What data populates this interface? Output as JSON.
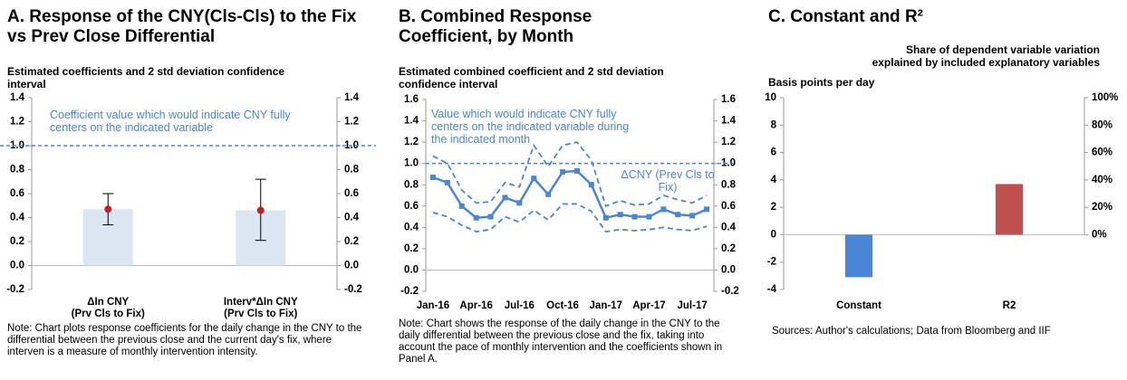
{
  "chart_data": [
    {
      "type": "bar",
      "title": "A. Response of the CNY(Cls-Cls) to the Fix vs Prev Close Differential",
      "subtitle": "Estimated coefficients and 2 std deviation confidence interval",
      "categories": [
        "ΔIn CNY\n(Prv Cls to Fix)",
        "Interv*ΔIn CNY\n(Prv Cls to Fix)"
      ],
      "values": [
        0.47,
        0.46
      ],
      "color": "#dce6f2",
      "point_color": "#c0202a",
      "error_low": [
        0.34,
        0.21
      ],
      "error_high": [
        0.6,
        0.72
      ],
      "reference_line": {
        "value": 1,
        "color": "#4a86d4",
        "label": "Coefficient value which would indicate CNY fully centers on the indicated variable"
      },
      "ylim": [
        -0.2,
        1.4
      ],
      "yticks": [
        -0.2,
        {
          "value": 0,
          "label": "0.0"
        },
        0.2,
        0.4,
        0.6,
        0.8,
        {
          "value": 1,
          "label": "1.0"
        },
        1.2,
        1.4
      ],
      "y2lim": [
        -0.2,
        1.4
      ],
      "y2ticks": [
        -0.2,
        {
          "value": 0,
          "label": "0.0"
        },
        0.2,
        0.4,
        0.6,
        0.8,
        {
          "value": 1,
          "label": "1.0"
        },
        1.2,
        1.4
      ],
      "note": "Note: Chart plots response coefficients for the daily change in the CNY to the differential between the previous close and the current day's fix, where interven is a measure of monthly intervention intensity."
    },
    {
      "type": "line",
      "title": "B. Combined Response Coefficient, by Month",
      "subtitle": "Estimated combined coefficient and 2 std deviation confidence interval",
      "categories": [
        "Jan-16",
        null,
        null,
        "Apr-16",
        null,
        null,
        "Jul-16",
        null,
        null,
        "Oct-16",
        null,
        null,
        "Jan-17",
        null,
        null,
        "Apr-17",
        null,
        null,
        "Jul-17",
        null
      ],
      "series": [
        {
          "color": "#4a86d4",
          "style": "solid",
          "markers": true,
          "values": [
            0.87,
            0.82,
            0.6,
            0.49,
            0.5,
            0.68,
            0.63,
            0.86,
            0.71,
            0.92,
            0.93,
            0.8,
            0.49,
            0.52,
            0.5,
            0.5,
            0.57,
            0.52,
            0.51,
            0.57
          ]
        },
        {
          "color": "#4a86d4",
          "style": "dashed",
          "markers": false,
          "values": [
            1.07,
            1.0,
            0.75,
            0.63,
            0.64,
            0.82,
            0.78,
            1.17,
            0.97,
            1.17,
            1.2,
            1.03,
            0.6,
            0.65,
            0.61,
            0.62,
            0.7,
            0.66,
            0.63,
            0.7
          ]
        },
        {
          "color": "#4a86d4",
          "style": "dashed",
          "markers": false,
          "values": [
            0.54,
            0.5,
            0.42,
            0.36,
            0.38,
            0.5,
            0.45,
            0.56,
            0.47,
            0.62,
            0.62,
            0.55,
            0.36,
            0.38,
            0.37,
            0.38,
            0.4,
            0.38,
            0.37,
            0.41
          ]
        }
      ],
      "reference_line": {
        "value": 1,
        "color": "#4a86d4",
        "label": "Value which would indicate CNY fully centers on the indicated variable during the indicated month"
      },
      "annotation": "ΔCNY (Prev Cls to Fix)",
      "ylim": [
        -0.2,
        1.6
      ],
      "yticks": [
        -0.2,
        {
          "value": 0,
          "label": "0.0"
        },
        0.2,
        0.4,
        0.6,
        0.8,
        {
          "value": 1,
          "label": "1.0"
        },
        1.2,
        1.4,
        1.6
      ],
      "y2lim": [
        -0.2,
        1.6
      ],
      "y2ticks": [
        -0.2,
        {
          "value": 0,
          "label": "0.0"
        },
        0.2,
        0.4,
        0.6,
        0.8,
        {
          "value": 1,
          "label": "1.0"
        },
        1.2,
        1.4,
        1.6
      ],
      "note": "Note: Chart shows the response of the daily change in the CNY to the daily differential between the previous close and the fix, taking into account the pace of monthly intervention and the coefficients shown in Panel A."
    },
    {
      "type": "bar",
      "title": "C. Constant and R²",
      "ylabel": "Basis points per day",
      "y2label": "Share of dependent variable variation explained by included explanatory variables",
      "categories": [
        "Constant",
        "R2"
      ],
      "series": [
        {
          "color": "#4a86d4",
          "values": [
            -3.1,
            null
          ]
        },
        {
          "color": "#c0504d",
          "axis": "y2",
          "values": [
            null,
            37
          ]
        }
      ],
      "ylim": [
        -4,
        10
      ],
      "yticks": [
        -4,
        -2,
        0,
        2,
        4,
        6,
        8,
        10
      ],
      "y2lim": [
        -40,
        100
      ],
      "y2ticks": [
        {
          "value": 0,
          "label": "0%"
        },
        {
          "value": 20,
          "label": "20%"
        },
        {
          "value": 40,
          "label": "40%"
        },
        {
          "value": 60,
          "label": "60%"
        },
        {
          "value": 80,
          "label": "80%"
        },
        {
          "value": 100,
          "label": "100%"
        }
      ],
      "note": "Sources: Author's calculations; Data from Bloomberg and IIF"
    }
  ]
}
